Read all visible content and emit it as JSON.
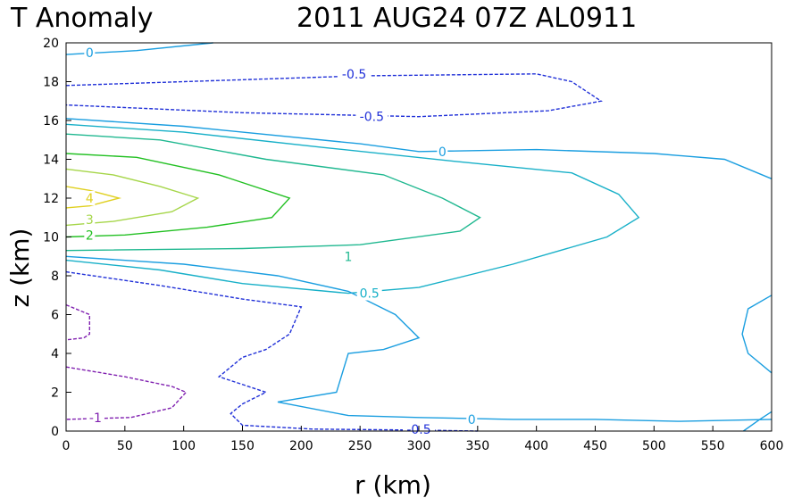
{
  "chart_data": {
    "type": "contour",
    "title_left": "T Anomaly",
    "title_right": "2011 AUG24 07Z  AL0911",
    "xlabel": "r (km)",
    "ylabel": "z (km)",
    "xlim": [
      0,
      600
    ],
    "ylim": [
      0,
      20
    ],
    "xticks": [
      "0",
      "50",
      "100",
      "150",
      "200",
      "250",
      "300",
      "350",
      "400",
      "450",
      "500",
      "550",
      "600"
    ],
    "yticks": [
      "0",
      "2",
      "4",
      "6",
      "8",
      "10",
      "12",
      "14",
      "16",
      "18",
      "20"
    ],
    "grid": false,
    "contours": [
      {
        "level": 4,
        "color": "#e0d020",
        "dashed": false,
        "points": [
          [
            0,
            12.6
          ],
          [
            20,
            12.4
          ],
          [
            45,
            12.0
          ],
          [
            20,
            11.6
          ],
          [
            0,
            11.5
          ]
        ]
      },
      {
        "level": 3,
        "color": "#a6d64a",
        "dashed": false,
        "points": [
          [
            0,
            13.5
          ],
          [
            40,
            13.2
          ],
          [
            80,
            12.6
          ],
          [
            112,
            12.0
          ],
          [
            90,
            11.3
          ],
          [
            40,
            10.8
          ],
          [
            0,
            10.6
          ]
        ]
      },
      {
        "level": 2,
        "color": "#22c022",
        "dashed": false,
        "points": [
          [
            0,
            14.3
          ],
          [
            60,
            14.1
          ],
          [
            130,
            13.2
          ],
          [
            190,
            12.0
          ],
          [
            175,
            11.0
          ],
          [
            120,
            10.5
          ],
          [
            50,
            10.1
          ],
          [
            0,
            10.0
          ]
        ]
      },
      {
        "level": 1,
        "color": "#20b890",
        "dashed": false,
        "points": [
          [
            0,
            15.3
          ],
          [
            80,
            15.0
          ],
          [
            170,
            14.0
          ],
          [
            270,
            13.2
          ],
          [
            320,
            12.0
          ],
          [
            352,
            11.0
          ],
          [
            335,
            10.3
          ],
          [
            250,
            9.6
          ],
          [
            150,
            9.4
          ],
          [
            0,
            9.3
          ]
        ]
      },
      {
        "level": 0.5,
        "color": "#18b0c8",
        "dashed": false,
        "points": [
          [
            0,
            15.8
          ],
          [
            100,
            15.4
          ],
          [
            220,
            14.6
          ],
          [
            330,
            13.9
          ],
          [
            430,
            13.3
          ],
          [
            470,
            12.2
          ],
          [
            487,
            11.0
          ],
          [
            460,
            10.0
          ],
          [
            380,
            8.6
          ],
          [
            300,
            7.4
          ],
          [
            240,
            7.1
          ],
          [
            150,
            7.6
          ],
          [
            80,
            8.3
          ],
          [
            0,
            8.8
          ]
        ]
      },
      {
        "level": 0,
        "color": "#1a9ee0",
        "dashed": false,
        "points": [
          [
            0,
            16.1
          ],
          [
            100,
            15.7
          ],
          [
            250,
            14.8
          ],
          [
            300,
            14.4
          ],
          [
            400,
            14.5
          ],
          [
            500,
            14.3
          ],
          [
            560,
            14.0
          ],
          [
            600,
            13.0
          ]
        ]
      },
      {
        "level": 0,
        "color": "#1a9ee0",
        "dashed": false,
        "points": [
          [
            0,
            9.0
          ],
          [
            100,
            8.6
          ],
          [
            180,
            8.0
          ],
          [
            240,
            7.2
          ],
          [
            280,
            6.0
          ],
          [
            300,
            4.8
          ],
          [
            270,
            4.2
          ],
          [
            240,
            4.0
          ],
          [
            230,
            2.0
          ],
          [
            180,
            1.5
          ],
          [
            240,
            0.8
          ],
          [
            300,
            0.7
          ],
          [
            380,
            0.6
          ],
          [
            450,
            0.6
          ],
          [
            520,
            0.5
          ],
          [
            600,
            0.6
          ]
        ]
      },
      {
        "level": 0,
        "color": "#1a9ee0",
        "dashed": false,
        "points": [
          [
            0,
            19.4
          ],
          [
            60,
            19.6
          ],
          [
            125,
            20.0
          ]
        ]
      },
      {
        "level": 0,
        "color": "#1a9ee0",
        "dashed": false,
        "points": [
          [
            600,
            7.0
          ],
          [
            580,
            6.3
          ],
          [
            575,
            5.0
          ],
          [
            580,
            4.0
          ],
          [
            600,
            3.0
          ]
        ]
      },
      {
        "level": 0,
        "color": "#1a9ee0",
        "dashed": false,
        "points": [
          [
            576,
            0
          ],
          [
            590,
            0.6
          ],
          [
            600,
            1.0
          ]
        ]
      },
      {
        "level": -0.5,
        "color": "#2030d8",
        "dashed": true,
        "points": [
          [
            0,
            17.8
          ],
          [
            100,
            18.0
          ],
          [
            250,
            18.3
          ],
          [
            400,
            18.4
          ],
          [
            430,
            18.0
          ],
          [
            455,
            17.0
          ],
          [
            410,
            16.5
          ],
          [
            300,
            16.2
          ],
          [
            150,
            16.4
          ],
          [
            0,
            16.8
          ]
        ]
      },
      {
        "level": -0.5,
        "color": "#2030d8",
        "dashed": true,
        "points": [
          [
            0,
            8.2
          ],
          [
            80,
            7.5
          ],
          [
            150,
            6.8
          ],
          [
            200,
            6.4
          ],
          [
            190,
            5.0
          ],
          [
            170,
            4.2
          ],
          [
            150,
            3.8
          ],
          [
            130,
            2.8
          ],
          [
            170,
            2.0
          ],
          [
            150,
            1.4
          ],
          [
            140,
            0.9
          ],
          [
            150,
            0.3
          ],
          [
            210,
            0.1
          ],
          [
            300,
            0.05
          ],
          [
            350,
            0.0
          ]
        ]
      },
      {
        "level": -1,
        "color": "#8020b0",
        "dashed": true,
        "points": [
          [
            0,
            6.5
          ],
          [
            20,
            6.0
          ],
          [
            20,
            5.0
          ],
          [
            15,
            4.8
          ],
          [
            0,
            4.7
          ]
        ]
      },
      {
        "level": -1,
        "color": "#8020b0",
        "dashed": true,
        "points": [
          [
            0,
            3.3
          ],
          [
            50,
            2.8
          ],
          [
            90,
            2.3
          ],
          [
            102,
            2.0
          ],
          [
            90,
            1.2
          ],
          [
            55,
            0.7
          ],
          [
            0,
            0.6
          ]
        ]
      }
    ],
    "contour_labels": [
      {
        "text": "0",
        "x": 20,
        "y": 19.5,
        "color": "#1a9ee0"
      },
      {
        "text": "-0.5",
        "x": 245,
        "y": 18.4,
        "color": "#2030d8"
      },
      {
        "text": "-0.5",
        "x": 260,
        "y": 16.2,
        "color": "#2030d8"
      },
      {
        "text": "0",
        "x": 320,
        "y": 14.4,
        "color": "#1a9ee0"
      },
      {
        "text": "4",
        "x": 20,
        "y": 12.0,
        "color": "#e0d020"
      },
      {
        "text": "3",
        "x": 20,
        "y": 10.9,
        "color": "#a6d64a"
      },
      {
        "text": "2",
        "x": 20,
        "y": 10.1,
        "color": "#22c022"
      },
      {
        "text": "1",
        "x": 240,
        "y": 9.0,
        "color": "#20b890"
      },
      {
        "text": "0.5",
        "x": 258,
        "y": 7.1,
        "color": "#18b0c8"
      },
      {
        "text": "0",
        "x": 345,
        "y": 0.6,
        "color": "#1a9ee0"
      },
      {
        "text": "-0.5",
        "x": 300,
        "y": 0.1,
        "color": "#2030d8"
      },
      {
        "text": "-1",
        "x": 25,
        "y": 0.7,
        "color": "#8020b0"
      }
    ]
  }
}
